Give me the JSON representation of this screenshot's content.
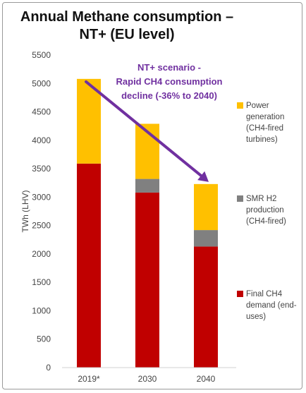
{
  "chart_data": {
    "type": "bar",
    "stacked": true,
    "title": [
      "Annual Methane consumption –",
      "NT+ (EU level)"
    ],
    "ylabel": "TWh (LHV)",
    "xlabel": "",
    "categories": [
      "2019*",
      "2030",
      "2040"
    ],
    "ylim": [
      0,
      5500
    ],
    "yticks": [
      0,
      500,
      1000,
      1500,
      2000,
      2500,
      3000,
      3500,
      4000,
      4500,
      5000,
      5500
    ],
    "grid": false,
    "legend_position": "right",
    "series": [
      {
        "name": "Final CH4 demand (end-uses)",
        "legend_lines": [
          "Final CH4",
          "demand (end-",
          "uses)"
        ],
        "color": "#c00000",
        "values": [
          3590,
          3080,
          2130
        ]
      },
      {
        "name": "SMR H2 production (CH4-fired)",
        "legend_lines": [
          "SMR H2",
          "production",
          "(CH4-fired)"
        ],
        "color": "#808080",
        "values": [
          0,
          240,
          290
        ]
      },
      {
        "name": "Power generation (CH4-fired turbines)",
        "legend_lines": [
          "Power",
          "generation",
          "(CH4-fired",
          "turbines)"
        ],
        "color": "#ffc000",
        "values": [
          1490,
          970,
          810
        ]
      }
    ],
    "annotation": {
      "lines": [
        "NT+ scenario -",
        "Rapid CH4 consumption",
        "decline (-36% to 2040)"
      ],
      "color": "#7030a0"
    }
  }
}
